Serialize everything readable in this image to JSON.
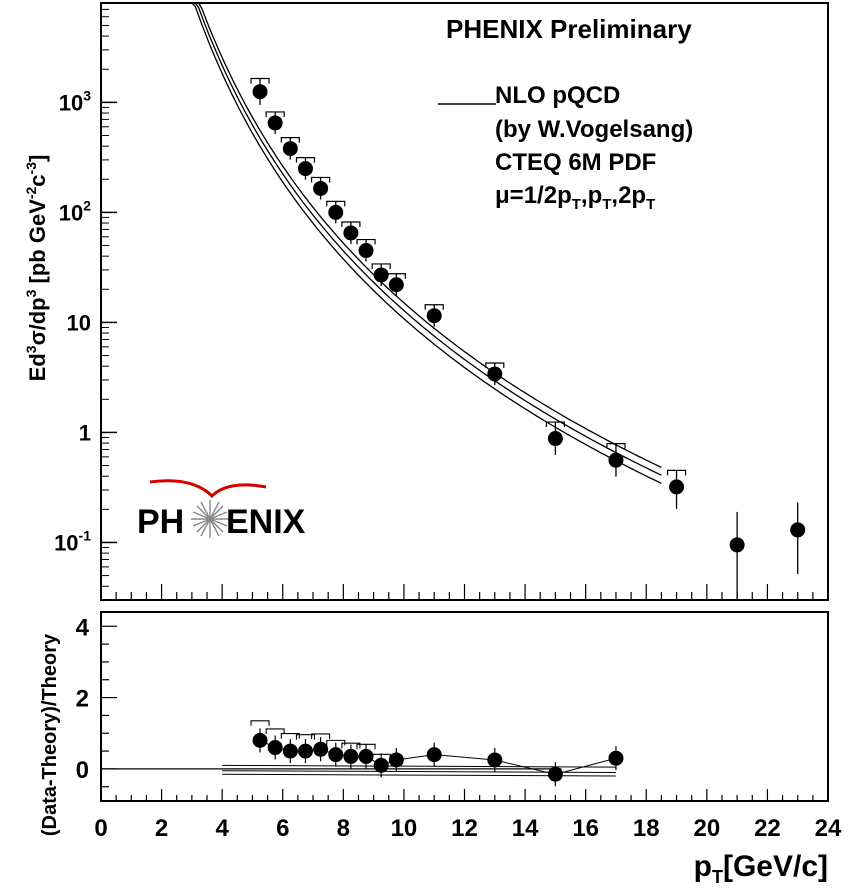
{
  "chart_data": [
    {
      "type": "scatter",
      "panel": "top",
      "title": "PHENIX Preliminary",
      "xlabel": "",
      "ylabel": "Ed³σ/dp³ [pb GeV⁻²c⁻³]",
      "ylabel_parts": {
        "a": "Ed",
        "b": "3",
        "c": "σ/dp",
        "d": "3",
        "e": " [pb GeV",
        "f": "-2",
        "g": "c",
        "h": "-3",
        "i": "]"
      },
      "y_scale": "log",
      "xlim": [
        0,
        24
      ],
      "ylim": [
        0.03,
        8000
      ],
      "y_ticks": [
        {
          "value": 1000,
          "mant": "10",
          "exp": "3"
        },
        {
          "value": 100,
          "mant": "10",
          "exp": "2"
        },
        {
          "value": 10,
          "mant": "10",
          "exp": ""
        },
        {
          "value": 1,
          "mant": "1",
          "exp": ""
        },
        {
          "value": 0.1,
          "mant": "10",
          "exp": "-1"
        }
      ],
      "series": [
        {
          "x": [
            5.25,
            5.75,
            6.25,
            6.75,
            7.25,
            7.75,
            8.25,
            8.75,
            9.25,
            9.75,
            11,
            13,
            15,
            17,
            19,
            21,
            23
          ],
          "y": [
            1250,
            650,
            380,
            250,
            165,
            100,
            65,
            45,
            27,
            22,
            11.5,
            3.4,
            0.88,
            0.56,
            0.32,
            0.095,
            0.13
          ],
          "yerr_low": [
            0.12,
            0.1,
            0.1,
            0.1,
            0.1,
            0.1,
            0.1,
            0.1,
            0.1,
            0.1,
            0.1,
            0.1,
            0.15,
            0.15,
            0.2,
            0.5,
            0.4
          ],
          "yerr_high": [
            0.12,
            0.1,
            0.1,
            0.1,
            0.1,
            0.1,
            0.1,
            0.1,
            0.1,
            0.1,
            0.1,
            0.1,
            0.15,
            0.15,
            0.15,
            0.3,
            0.25
          ],
          "syst_box": [
            true,
            true,
            true,
            true,
            true,
            true,
            true,
            true,
            true,
            true,
            true,
            true,
            true,
            true,
            true,
            false,
            false
          ]
        }
      ],
      "theory_curves": [
        {
          "A": 6000000,
          "n": 5.6
        },
        {
          "A": 5100000,
          "n": 5.6
        },
        {
          "A": 4300000,
          "n": 5.6
        }
      ],
      "theory_range": [
        3,
        18.5
      ],
      "legend": {
        "line1": "NLO pQCD",
        "line2": "(by W.Vogelsang)",
        "line3": "CTEQ 6M PDF",
        "line4": {
          "a": "μ=1/2p",
          "sub1": "T",
          "b": ",p",
          "sub2": "T",
          "c": ",2p",
          "sub3": "T"
        }
      },
      "logo": {
        "text_left": "PH",
        "text_right": "ENIX"
      }
    },
    {
      "type": "scatter",
      "panel": "bottom",
      "xlabel": "p_T [GeV/c]",
      "xlabel_parts": {
        "a": "p",
        "sub": "T",
        "b": "[GeV/c]"
      },
      "ylabel": "(Data-Theory)/Theory",
      "xlim": [
        0,
        24
      ],
      "ylim": [
        -0.9,
        4.4
      ],
      "x_ticks": [
        0,
        2,
        4,
        6,
        8,
        10,
        12,
        14,
        16,
        18,
        20,
        22,
        24
      ],
      "y_ticks": [
        0,
        2,
        4
      ],
      "series": [
        {
          "x": [
            5.25,
            5.75,
            6.25,
            6.75,
            7.25,
            7.75,
            8.25,
            8.75,
            9.25,
            9.75,
            11,
            13,
            15,
            17
          ],
          "y": [
            0.8,
            0.6,
            0.5,
            0.5,
            0.55,
            0.4,
            0.35,
            0.35,
            0.1,
            0.25,
            0.4,
            0.25,
            -0.15,
            0.3
          ]
        }
      ],
      "theory_band_lines": [
        0.05,
        -0.1,
        -0.2
      ],
      "theory_band_range": [
        4.0,
        17.0
      ]
    }
  ]
}
